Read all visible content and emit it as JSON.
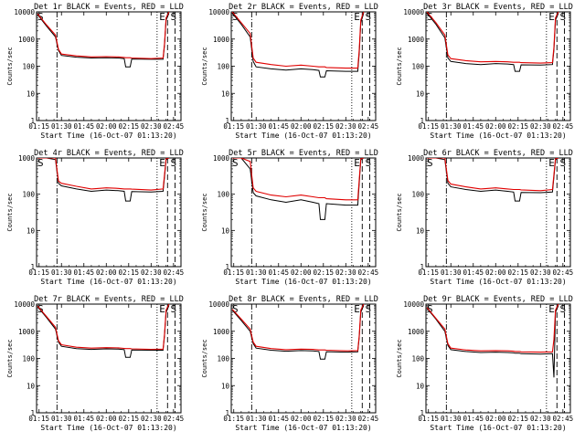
{
  "shared": {
    "xlabel": "Start Time (16-Oct-07 01:13:20)",
    "ylabel": "Counts/sec",
    "x_tick_labels": [
      "01:15",
      "01:30",
      "01:45",
      "02:00",
      "02:15",
      "02:30",
      "02:45"
    ],
    "y_tick_labels": [
      "1",
      "10",
      "100",
      "1000",
      "10000"
    ],
    "marker_left": "S",
    "marker_e": "E",
    "marker_right": "S",
    "colors": {
      "events": "#000000",
      "lld": "#e00000"
    }
  },
  "chart_data": [
    {
      "type": "line",
      "title": "Det 1r BLACK = Events, RED = LLD",
      "xlim": [
        "01:13:20",
        "02:50:00"
      ],
      "ylim": [
        1,
        10000
      ],
      "yscale": "log",
      "x": [
        "01:14",
        "01:20",
        "01:26",
        "01:28",
        "01:30",
        "01:40",
        "01:50",
        "02:00",
        "02:08",
        "02:12",
        "02:13",
        "02:16",
        "02:17",
        "02:30",
        "02:38",
        "02:39",
        "02:40",
        "02:42"
      ],
      "series": [
        {
          "name": "BLACK = Events",
          "color": "#000000",
          "values": [
            8000,
            3000,
            1200,
            380,
            250,
            215,
            200,
            205,
            200,
            190,
            95,
            95,
            185,
            180,
            180,
            600,
            5000,
            9000
          ]
        },
        {
          "name": "RED = LLD",
          "color": "#e00000",
          "values": [
            8500,
            3300,
            1400,
            420,
            280,
            240,
            220,
            225,
            220,
            210,
            205,
            205,
            200,
            190,
            200,
            700,
            6000,
            10000
          ]
        }
      ]
    },
    {
      "type": "line",
      "title": "Det 2r BLACK = Events, RED = LLD",
      "xlim": [
        "01:13:20",
        "02:50:00"
      ],
      "ylim": [
        1,
        10000
      ],
      "yscale": "log",
      "x": [
        "01:14",
        "01:20",
        "01:26",
        "01:28",
        "01:30",
        "01:40",
        "01:50",
        "02:00",
        "02:08",
        "02:12",
        "02:13",
        "02:16",
        "02:17",
        "02:30",
        "02:38",
        "02:39",
        "02:40",
        "02:42"
      ],
      "series": [
        {
          "name": "BLACK = Events",
          "color": "#000000",
          "values": [
            9000,
            3500,
            1200,
            150,
            95,
            80,
            72,
            80,
            75,
            70,
            40,
            40,
            68,
            65,
            65,
            300,
            4000,
            9000
          ]
        },
        {
          "name": "RED = LLD",
          "color": "#e00000",
          "values": [
            10000,
            4000,
            1600,
            200,
            140,
            115,
            100,
            110,
            100,
            95,
            95,
            95,
            90,
            85,
            85,
            400,
            5000,
            10000
          ]
        }
      ]
    },
    {
      "type": "line",
      "title": "Det 3r BLACK = Events, RED = LLD",
      "xlim": [
        "01:13:20",
        "02:50:00"
      ],
      "ylim": [
        1,
        10000
      ],
      "yscale": "log",
      "x": [
        "01:14",
        "01:20",
        "01:26",
        "01:28",
        "01:30",
        "01:40",
        "01:50",
        "02:00",
        "02:08",
        "02:12",
        "02:13",
        "02:16",
        "02:17",
        "02:30",
        "02:38",
        "02:39",
        "02:40",
        "02:42"
      ],
      "series": [
        {
          "name": "BLACK = Events",
          "color": "#000000",
          "values": [
            9000,
            3500,
            1100,
            200,
            150,
            125,
            115,
            125,
            120,
            115,
            65,
            65,
            112,
            110,
            115,
            400,
            5000,
            9000
          ]
        },
        {
          "name": "RED = LLD",
          "color": "#e00000",
          "values": [
            10000,
            4000,
            1400,
            260,
            190,
            160,
            145,
            150,
            145,
            140,
            140,
            140,
            135,
            130,
            135,
            500,
            6000,
            10000
          ]
        }
      ]
    },
    {
      "type": "line",
      "title": "Det 4r BLACK = Events, RED = LLD",
      "xlim": [
        "01:13:20",
        "02:50:00"
      ],
      "ylim": [
        1,
        1000
      ],
      "yscale": "log",
      "x": [
        "01:14",
        "01:20",
        "01:26",
        "01:28",
        "01:30",
        "01:40",
        "01:50",
        "02:00",
        "02:08",
        "02:12",
        "02:13",
        "02:16",
        "02:17",
        "02:30",
        "02:38",
        "02:39",
        "02:40",
        "02:42"
      ],
      "series": [
        {
          "name": "BLACK = Events",
          "color": "#000000",
          "values": [
            1000,
            1000,
            900,
            200,
            170,
            140,
            120,
            130,
            125,
            120,
            65,
            65,
            118,
            115,
            120,
            300,
            900,
            1000
          ]
        },
        {
          "name": "RED = LLD",
          "color": "#e00000",
          "values": [
            1000,
            1000,
            1000,
            230,
            200,
            165,
            140,
            150,
            145,
            140,
            140,
            140,
            138,
            130,
            140,
            350,
            950,
            1000
          ]
        }
      ]
    },
    {
      "type": "line",
      "title": "Det 5r BLACK = Events, RED = LLD",
      "xlim": [
        "01:13:20",
        "02:50:00"
      ],
      "ylim": [
        1,
        1000
      ],
      "yscale": "log",
      "x": [
        "01:14",
        "01:20",
        "01:26",
        "01:28",
        "01:30",
        "01:40",
        "01:50",
        "02:00",
        "02:08",
        "02:12",
        "02:13",
        "02:16",
        "02:17",
        "02:30",
        "02:38",
        "02:39",
        "02:40",
        "02:42"
      ],
      "series": [
        {
          "name": "BLACK = Events",
          "color": "#000000",
          "values": [
            1000,
            1000,
            500,
            110,
            90,
            70,
            60,
            70,
            60,
            55,
            20,
            20,
            55,
            50,
            50,
            200,
            900,
            1000
          ]
        },
        {
          "name": "RED = LLD",
          "color": "#e00000",
          "values": [
            1000,
            1000,
            800,
            150,
            120,
            95,
            85,
            95,
            85,
            80,
            80,
            80,
            75,
            70,
            70,
            250,
            950,
            1000
          ]
        }
      ]
    },
    {
      "type": "line",
      "title": "Det 6r BLACK = Events, RED = LLD",
      "xlim": [
        "01:13:20",
        "02:50:00"
      ],
      "ylim": [
        1,
        1000
      ],
      "yscale": "log",
      "x": [
        "01:14",
        "01:20",
        "01:26",
        "01:28",
        "01:30",
        "01:40",
        "01:50",
        "02:00",
        "02:08",
        "02:12",
        "02:13",
        "02:16",
        "02:17",
        "02:30",
        "02:38",
        "02:39",
        "02:40",
        "02:42"
      ],
      "series": [
        {
          "name": "BLACK = Events",
          "color": "#000000",
          "values": [
            1000,
            1000,
            900,
            200,
            160,
            135,
            120,
            130,
            120,
            115,
            65,
            65,
            112,
            110,
            115,
            300,
            900,
            1000
          ]
        },
        {
          "name": "RED = LLD",
          "color": "#e00000",
          "values": [
            1000,
            1000,
            1000,
            240,
            190,
            160,
            140,
            150,
            140,
            135,
            135,
            135,
            132,
            125,
            135,
            350,
            950,
            1000
          ]
        }
      ]
    },
    {
      "type": "line",
      "title": "Det 7r BLACK = Events, RED = LLD",
      "xlim": [
        "01:13:20",
        "02:50:00"
      ],
      "ylim": [
        1,
        10000
      ],
      "yscale": "log",
      "x": [
        "01:14",
        "01:20",
        "01:26",
        "01:28",
        "01:30",
        "01:40",
        "01:50",
        "02:00",
        "02:08",
        "02:12",
        "02:13",
        "02:16",
        "02:17",
        "02:30",
        "02:38",
        "02:39",
        "02:40",
        "02:42"
      ],
      "series": [
        {
          "name": "BLACK = Events",
          "color": "#000000",
          "values": [
            8000,
            3200,
            1200,
            400,
            280,
            230,
            215,
            225,
            220,
            210,
            110,
            110,
            205,
            200,
            200,
            700,
            5000,
            9000
          ]
        },
        {
          "name": "RED = LLD",
          "color": "#e00000",
          "values": [
            8500,
            3500,
            1400,
            450,
            320,
            260,
            240,
            250,
            245,
            235,
            230,
            230,
            225,
            215,
            220,
            800,
            6000,
            10000
          ]
        }
      ]
    },
    {
      "type": "line",
      "title": "Det 8r BLACK = Events, RED = LLD",
      "xlim": [
        "01:13:20",
        "02:50:00"
      ],
      "ylim": [
        1,
        10000
      ],
      "yscale": "log",
      "x": [
        "01:14",
        "01:20",
        "01:26",
        "01:28",
        "01:30",
        "01:40",
        "01:50",
        "02:00",
        "02:08",
        "02:12",
        "02:13",
        "02:16",
        "02:17",
        "02:30",
        "02:38",
        "02:39",
        "02:40",
        "02:42"
      ],
      "series": [
        {
          "name": "BLACK = Events",
          "color": "#000000",
          "values": [
            6000,
            2500,
            1000,
            350,
            240,
            200,
            185,
            195,
            190,
            180,
            95,
            95,
            178,
            170,
            175,
            600,
            5000,
            9000
          ]
        },
        {
          "name": "RED = LLD",
          "color": "#e00000",
          "values": [
            6500,
            2800,
            1200,
            400,
            280,
            230,
            210,
            220,
            215,
            205,
            205,
            205,
            200,
            190,
            195,
            700,
            6000,
            10000
          ]
        }
      ]
    },
    {
      "type": "line",
      "title": "Det 9r BLACK = Events, RED = LLD",
      "xlim": [
        "01:13:20",
        "02:50:00"
      ],
      "ylim": [
        1,
        10000
      ],
      "yscale": "log",
      "x": [
        "01:14",
        "01:20",
        "01:26",
        "01:28",
        "01:30",
        "01:40",
        "01:50",
        "02:00",
        "02:08",
        "02:12",
        "02:13",
        "02:16",
        "02:17",
        "02:30",
        "02:38",
        "02:39",
        "02:40",
        "02:42"
      ],
      "series": [
        {
          "name": "BLACK = Events",
          "color": "#000000",
          "values": [
            7000,
            2800,
            1000,
            300,
            210,
            180,
            165,
            170,
            165,
            160,
            155,
            155,
            150,
            145,
            150,
            20,
            5000,
            9000
          ]
        },
        {
          "name": "RED = LLD",
          "color": "#e00000",
          "values": [
            7500,
            3000,
            1200,
            350,
            240,
            205,
            190,
            195,
            190,
            185,
            180,
            180,
            175,
            170,
            175,
            500,
            6000,
            10000
          ]
        }
      ]
    }
  ]
}
